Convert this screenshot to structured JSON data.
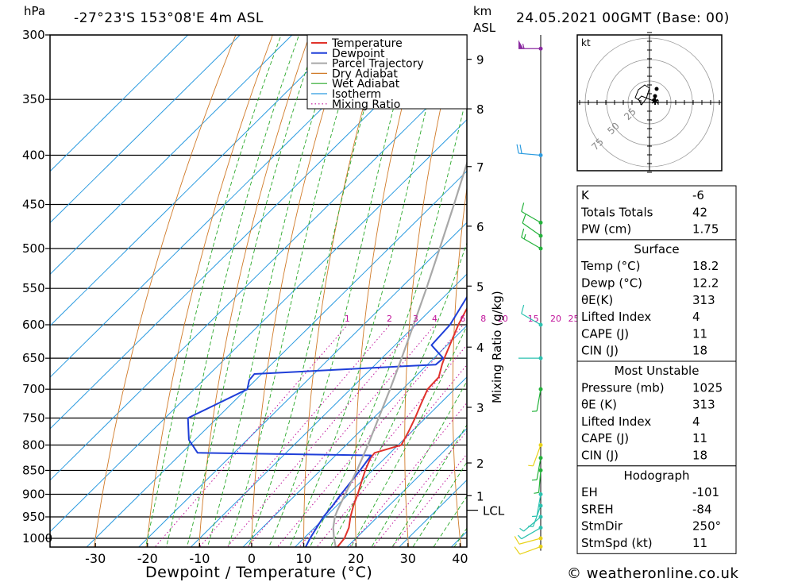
{
  "header": {
    "hpa_unit": "hPa",
    "location": "-27°23'S  153°08'E  4m  ASL",
    "km_unit": "km",
    "asl_unit": "ASL",
    "datetime": "24.05.2021  00GMT  (Base: 00)"
  },
  "colors": {
    "temperature": "#e0332b",
    "dewpoint": "#1f3fd8",
    "parcel": "#a8a8a8",
    "dry_adiabat": "#d07a28",
    "wet_adiabat": "#2aa82a",
    "isotherm": "#2b9be0",
    "mixing_ratio": "#c0129a"
  },
  "chart_data": {
    "type": "line",
    "title": "",
    "xlabel": "Dewpoint / Temperature (°C)",
    "ylabel": "hPa",
    "x_ticks": [
      "-30",
      "-20",
      "-10",
      "0",
      "10",
      "20",
      "30",
      "40"
    ],
    "x_tick_values": [
      -30,
      -20,
      -10,
      0,
      10,
      20,
      30,
      40
    ],
    "pressure_levels": [
      300,
      350,
      400,
      450,
      500,
      550,
      600,
      650,
      700,
      750,
      800,
      850,
      900,
      950,
      1000
    ],
    "height_km_ticks": [
      "9",
      "8",
      "7",
      "6",
      "5",
      "4",
      "3",
      "2",
      "1"
    ],
    "height_km_pressures": [
      318,
      358,
      411,
      474,
      547,
      633,
      731,
      835,
      903
    ],
    "lcl_label": "LCL",
    "lcl_pressure": 935,
    "mixing_ratio_axis_label": "Mixing Ratio (g/kg)",
    "mixing_ratio_labels": [
      "1",
      "2",
      "3",
      "4",
      "6",
      "8",
      "10",
      "15",
      "20",
      "25"
    ],
    "mixing_ratio_values": [
      1,
      2,
      3,
      4,
      6,
      8,
      10,
      15,
      20,
      25
    ],
    "legend": [
      "Temperature",
      "Dewpoint",
      "Parcel Trajectory",
      "Dry Adiabat",
      "Wet Adiabat",
      "Isotherm",
      "Mixing Ratio"
    ],
    "legend_position": "top-right",
    "series": [
      {
        "name": "Temperature",
        "points": [
          [
            1025,
            18.2
          ],
          [
            1000,
            17.8
          ],
          [
            975,
            16.6
          ],
          [
            950,
            14.8
          ],
          [
            925,
            13.2
          ],
          [
            900,
            11.8
          ],
          [
            875,
            10.2
          ],
          [
            850,
            8.6
          ],
          [
            825,
            7.2
          ],
          [
            815,
            7.0
          ],
          [
            800,
            10.6
          ],
          [
            775,
            9.4
          ],
          [
            750,
            8.0
          ],
          [
            725,
            6.4
          ],
          [
            700,
            4.8
          ],
          [
            680,
            4.6
          ],
          [
            660,
            2.8
          ],
          [
            650,
            2.0
          ],
          [
            600,
            -1.8
          ],
          [
            550,
            -5.2
          ],
          [
            500,
            -10.0
          ],
          [
            475,
            -13.6
          ],
          [
            450,
            -15.8
          ],
          [
            400,
            -21.6
          ],
          [
            380,
            -24.4
          ],
          [
            350,
            -28.6
          ],
          [
            320,
            -33.0
          ],
          [
            305,
            -35.6
          ],
          [
            300,
            -35.2
          ]
        ]
      },
      {
        "name": "Dewpoint",
        "points": [
          [
            1025,
            12.2
          ],
          [
            1000,
            11.2
          ],
          [
            975,
            10.4
          ],
          [
            950,
            9.6
          ],
          [
            925,
            9.2
          ],
          [
            900,
            8.6
          ],
          [
            850,
            7.6
          ],
          [
            820,
            6.8
          ],
          [
            815,
            -27.0
          ],
          [
            790,
            -31.2
          ],
          [
            750,
            -35.6
          ],
          [
            700,
            -29.8
          ],
          [
            685,
            -31.2
          ],
          [
            675,
            -31.4
          ],
          [
            660,
            1.6
          ],
          [
            650,
            1.8
          ],
          [
            630,
            -3.0
          ],
          [
            600,
            -3.4
          ],
          [
            550,
            -6.2
          ],
          [
            500,
            -11.6
          ],
          [
            475,
            -14.8
          ],
          [
            450,
            -14.0
          ],
          [
            420,
            -18.4
          ],
          [
            400,
            -24.2
          ],
          [
            370,
            -27.0
          ],
          [
            350,
            -27.0
          ],
          [
            330,
            -28.2
          ],
          [
            320,
            -27.8
          ],
          [
            310,
            -28.2
          ],
          [
            300,
            -30.2
          ]
        ]
      },
      {
        "name": "Parcel Trajectory",
        "points": [
          [
            1025,
            18.2
          ],
          [
            1000,
            15.8
          ],
          [
            975,
            13.6
          ],
          [
            950,
            11.8
          ],
          [
            935,
            11.0
          ],
          [
            900,
            9.4
          ],
          [
            850,
            7.0
          ],
          [
            800,
            4.2
          ],
          [
            750,
            1.0
          ],
          [
            700,
            -2.4
          ],
          [
            650,
            -6.2
          ],
          [
            600,
            -10.4
          ],
          [
            550,
            -15.0
          ],
          [
            500,
            -20.2
          ],
          [
            450,
            -26.0
          ],
          [
            400,
            -32.6
          ],
          [
            350,
            -40.4
          ],
          [
            300,
            -49.4
          ]
        ]
      }
    ]
  },
  "winds": {
    "barbs": [
      {
        "p": 1020,
        "dir": 250,
        "kt": 11,
        "color": "#e8d21a"
      },
      {
        "p": 1000,
        "dir": 255,
        "kt": 10,
        "color": "#e8d21a"
      },
      {
        "p": 975,
        "dir": 240,
        "kt": 8,
        "color": "#2bc2b0"
      },
      {
        "p": 950,
        "dir": 230,
        "kt": 7,
        "color": "#2bc2b0"
      },
      {
        "p": 925,
        "dir": 200,
        "kt": 6,
        "color": "#2bc2b0"
      },
      {
        "p": 900,
        "dir": 190,
        "kt": 7,
        "color": "#2bc2b0"
      },
      {
        "p": 850,
        "dir": 185,
        "kt": 9,
        "color": "#23b23a"
      },
      {
        "p": 825,
        "dir": 190,
        "kt": 8,
        "color": "#23b23a"
      },
      {
        "p": 800,
        "dir": 200,
        "kt": 5,
        "color": "#e8d21a"
      },
      {
        "p": 700,
        "dir": 190,
        "kt": 6,
        "color": "#23b23a"
      },
      {
        "p": 650,
        "dir": 270,
        "kt": 4,
        "color": "#2bc2b0"
      },
      {
        "p": 600,
        "dir": 300,
        "kt": 12,
        "color": "#2bc2b0"
      },
      {
        "p": 500,
        "dir": 300,
        "kt": 15,
        "color": "#23b23a"
      },
      {
        "p": 485,
        "dir": 305,
        "kt": 14,
        "color": "#23b23a"
      },
      {
        "p": 470,
        "dir": 300,
        "kt": 12,
        "color": "#23b23a"
      },
      {
        "p": 400,
        "dir": 275,
        "kt": 20,
        "color": "#2b9be0"
      },
      {
        "p": 310,
        "dir": 270,
        "kt": 55,
        "color": "#8a2aa0"
      }
    ]
  },
  "hodograph": {
    "unit_label": "kt",
    "ring_labels": [
      "25",
      "50",
      "75"
    ]
  },
  "indices_table": {
    "rows": [
      {
        "label": "K",
        "value": "-6"
      },
      {
        "label": "Totals Totals",
        "value": "42"
      },
      {
        "label": "PW (cm)",
        "value": "1.75"
      }
    ]
  },
  "surface_table": {
    "title": "Surface",
    "rows": [
      {
        "label": "Temp (°C)",
        "value": "18.2"
      },
      {
        "label": "Dewp (°C)",
        "value": "12.2"
      },
      {
        "label": "θE(K)",
        "value": "313"
      },
      {
        "label": "Lifted Index",
        "value": "4"
      },
      {
        "label": "CAPE (J)",
        "value": "11"
      },
      {
        "label": "CIN (J)",
        "value": "18"
      }
    ]
  },
  "most_unstable_table": {
    "title": "Most Unstable",
    "rows": [
      {
        "label": "Pressure (mb)",
        "value": "1025"
      },
      {
        "label": "θE (K)",
        "value": "313"
      },
      {
        "label": "Lifted Index",
        "value": "4"
      },
      {
        "label": "CAPE (J)",
        "value": "11"
      },
      {
        "label": "CIN (J)",
        "value": "18"
      }
    ]
  },
  "hodograph_table": {
    "title": "Hodograph",
    "rows": [
      {
        "label": "EH",
        "value": "-101"
      },
      {
        "label": "SREH",
        "value": "-84"
      },
      {
        "label": "StmDir",
        "value": "250°"
      },
      {
        "label": "StmSpd (kt)",
        "value": "11"
      }
    ]
  },
  "footer": {
    "copyright": "© weatheronline.co.uk"
  }
}
